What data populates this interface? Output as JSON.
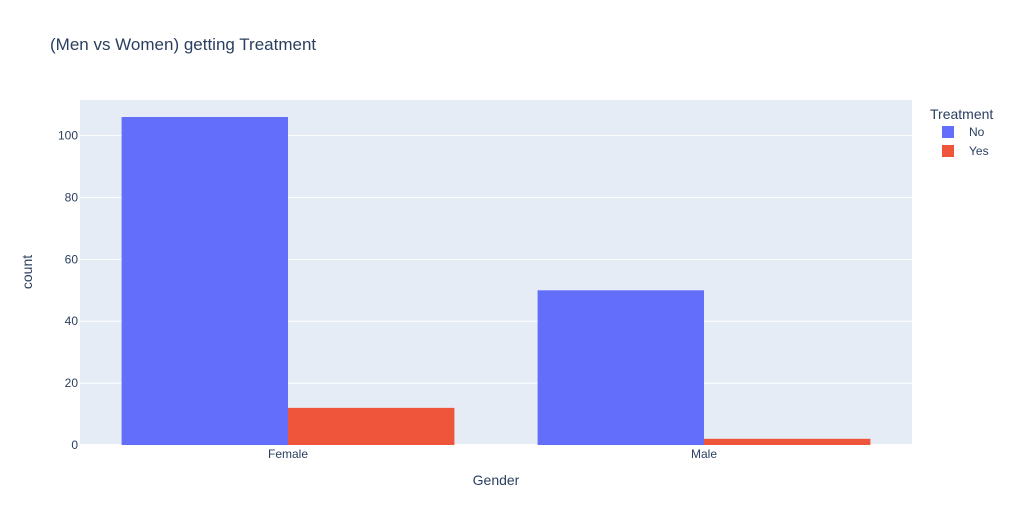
{
  "chart_data": {
    "type": "bar",
    "title": "(Men vs Women) getting Treatment",
    "xlabel": "Gender",
    "ylabel": "count",
    "categories": [
      "Female",
      "Male"
    ],
    "series": [
      {
        "name": "No",
        "values": [
          106,
          50
        ],
        "color": "#636efa"
      },
      {
        "name": "Yes",
        "values": [
          12,
          2
        ],
        "color": "#ef553b"
      }
    ],
    "ylim": [
      0,
      111.5
    ],
    "yticks": [
      0,
      20,
      40,
      60,
      80,
      100
    ],
    "grid": true,
    "legend": {
      "title": "Treatment",
      "placement": "top-right"
    },
    "plot_background": "#e5ecf6"
  }
}
